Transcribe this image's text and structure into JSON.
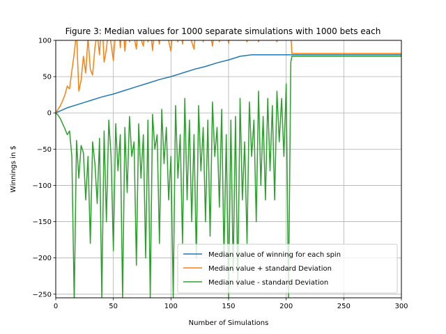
{
  "chart_data": {
    "type": "line",
    "title": "Figure 3: Median values for 1000 separate simulations with 1000 bets each",
    "xlabel": "Number of Simulations",
    "ylabel": "Winnings in $",
    "xlim": [
      0,
      300
    ],
    "ylim": [
      -255,
      100
    ],
    "xticks": [
      0,
      50,
      100,
      150,
      200,
      250,
      300
    ],
    "yticks": [
      -250,
      -200,
      -150,
      -100,
      -50,
      0,
      50,
      100
    ],
    "grid": true,
    "legend_position": "lower-right",
    "series": [
      {
        "name": "Median value of winning for each spin",
        "color": "#1f77b4",
        "x": [
          0,
          10,
          20,
          30,
          40,
          50,
          60,
          70,
          80,
          90,
          100,
          110,
          120,
          130,
          140,
          150,
          160,
          170,
          180,
          190,
          200,
          205,
          210,
          250,
          300
        ],
        "y": [
          0,
          7,
          12,
          17,
          22,
          26,
          31,
          36,
          41,
          46,
          50,
          55,
          60,
          64,
          69,
          73,
          78,
          80,
          80,
          80,
          80,
          80,
          80,
          80,
          80
        ]
      },
      {
        "name": "Median value + standard Deviation",
        "color": "#ff7f0e",
        "x": [
          0,
          2,
          4,
          6,
          8,
          10,
          12,
          14,
          16,
          18,
          20,
          22,
          24,
          26,
          28,
          30,
          32,
          34,
          36,
          38,
          40,
          42,
          44,
          46,
          48,
          50,
          52,
          54,
          56,
          58,
          60,
          62,
          64,
          66,
          68,
          70,
          72,
          74,
          76,
          78,
          80,
          82,
          84,
          86,
          88,
          90,
          92,
          94,
          96,
          98,
          100,
          102,
          104,
          106,
          108,
          110,
          112,
          114,
          116,
          118,
          120,
          122,
          124,
          126,
          128,
          130,
          132,
          134,
          136,
          138,
          140,
          142,
          144,
          146,
          148,
          150,
          152,
          154,
          156,
          158,
          160,
          162,
          164,
          166,
          168,
          170,
          172,
          174,
          176,
          178,
          180,
          182,
          184,
          186,
          188,
          190,
          192,
          194,
          196,
          198,
          200,
          202,
          204,
          205,
          206,
          250,
          300
        ],
        "y": [
          0,
          5,
          10,
          17,
          25,
          37,
          33,
          58,
          82,
          112,
          30,
          45,
          78,
          55,
          104,
          60,
          52,
          90,
          110,
          80,
          135,
          70,
          88,
          120,
          95,
          72,
          115,
          140,
          90,
          130,
          85,
          125,
          98,
          118,
          105,
          88,
          135,
          102,
          92,
          130,
          98,
          118,
          86,
          125,
          110,
          95,
          138,
          104,
          120,
          99,
          85,
          132,
          112,
          98,
          126,
          95,
          120,
          104,
          115,
          98,
          88,
          125,
          108,
          115,
          98,
          120,
          106,
          112,
          92,
          118,
          110,
          98,
          125,
          104,
          118,
          96,
          120,
          108,
          114,
          100,
          112,
          118,
          106,
          98,
          120,
          110,
          104,
          115,
          98,
          112,
          108,
          120,
          100,
          116,
          104,
          110,
          98,
          118,
          106,
          112,
          100,
          115,
          108,
          82,
          82,
          82,
          82
        ]
      },
      {
        "name": "Median value - standard Deviation",
        "color": "#2ca02c",
        "x": [
          0,
          2,
          4,
          6,
          8,
          10,
          12,
          14,
          16,
          18,
          20,
          22,
          24,
          26,
          28,
          30,
          32,
          34,
          36,
          38,
          40,
          42,
          44,
          46,
          48,
          50,
          52,
          54,
          56,
          58,
          60,
          62,
          64,
          66,
          68,
          70,
          72,
          74,
          76,
          78,
          80,
          82,
          84,
          86,
          88,
          90,
          92,
          94,
          96,
          98,
          100,
          102,
          104,
          106,
          108,
          110,
          112,
          114,
          116,
          118,
          120,
          122,
          124,
          126,
          128,
          130,
          132,
          134,
          136,
          138,
          140,
          142,
          144,
          146,
          148,
          150,
          152,
          154,
          156,
          158,
          160,
          162,
          164,
          166,
          168,
          170,
          172,
          174,
          176,
          178,
          180,
          182,
          184,
          186,
          188,
          190,
          192,
          194,
          196,
          198,
          200,
          202,
          204,
          205,
          206,
          250,
          300
        ],
        "y": [
          0,
          -3,
          -8,
          -15,
          -22,
          -30,
          -25,
          -60,
          -260,
          -38,
          -90,
          -45,
          -55,
          -120,
          -60,
          -180,
          -40,
          -70,
          -125,
          -35,
          -255,
          -25,
          -150,
          -10,
          -60,
          -190,
          -15,
          -80,
          -30,
          -255,
          -20,
          -110,
          -5,
          -60,
          -40,
          -210,
          -15,
          -90,
          -30,
          -200,
          -10,
          -255,
          -2,
          -50,
          -30,
          -180,
          5,
          -70,
          -20,
          -120,
          -60,
          -255,
          10,
          -90,
          -30,
          -180,
          20,
          -120,
          -10,
          -150,
          -30,
          -200,
          10,
          -80,
          -20,
          -150,
          -10,
          -170,
          15,
          -60,
          -20,
          -130,
          5,
          -200,
          -30,
          -255,
          -10,
          -220,
          -5,
          -240,
          20,
          -120,
          -40,
          -180,
          15,
          -60,
          -10,
          -150,
          30,
          -100,
          -5,
          -120,
          20,
          -80,
          10,
          -120,
          30,
          -40,
          20,
          -60,
          40,
          -255,
          70,
          78,
          78,
          78,
          78
        ]
      }
    ]
  }
}
